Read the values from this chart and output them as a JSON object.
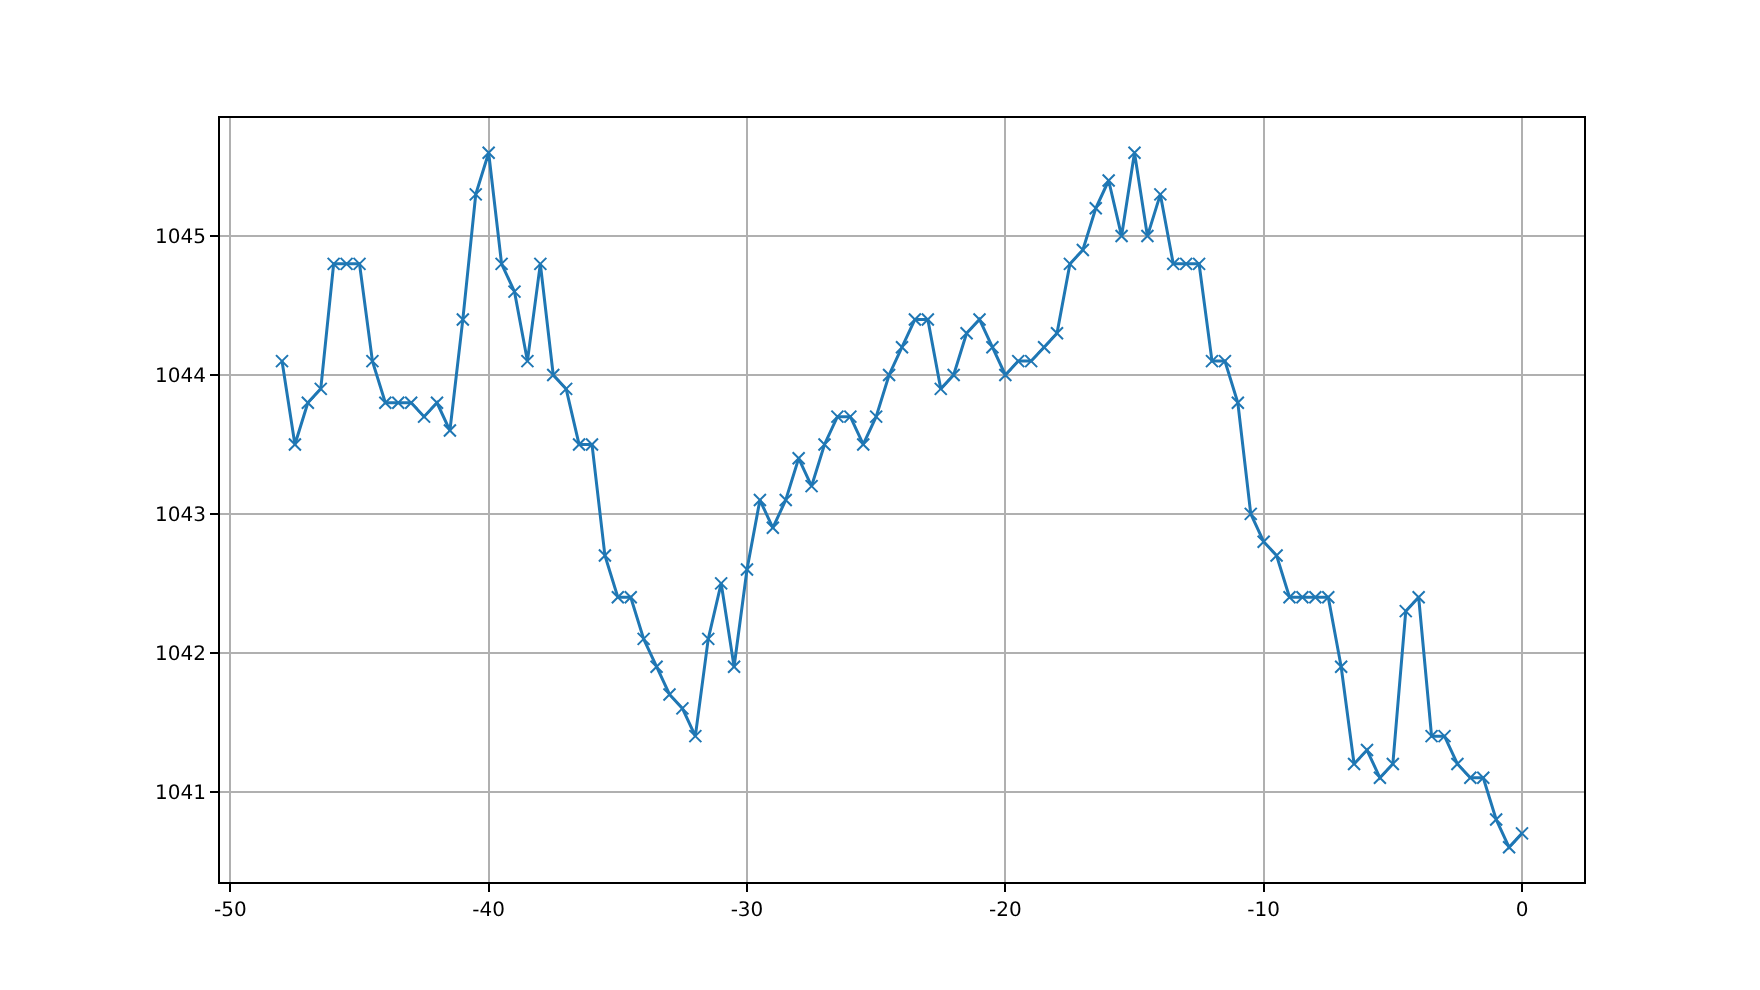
{
  "chart_data": {
    "type": "line",
    "marker": "cross",
    "grid": true,
    "x": [
      -48,
      -47.5,
      -47,
      -46.5,
      -46,
      -45.5,
      -45,
      -44.5,
      -44,
      -43.5,
      -43,
      -42.5,
      -42,
      -41.5,
      -41,
      -40.5,
      -40,
      -39.5,
      -39,
      -38.5,
      -38,
      -37.5,
      -37,
      -36.5,
      -36,
      -35.5,
      -35,
      -34.5,
      -34,
      -33.5,
      -33,
      -32.5,
      -32,
      -31.5,
      -31,
      -30.5,
      -30,
      -29.5,
      -29,
      -28.5,
      -28,
      -27.5,
      -27,
      -26.5,
      -26,
      -25.5,
      -25,
      -24.5,
      -24,
      -23.5,
      -23,
      -22.5,
      -22,
      -21.5,
      -21,
      -20.5,
      -20,
      -19.5,
      -19,
      -18.5,
      -18,
      -17.5,
      -17,
      -16.5,
      -16,
      -15.5,
      -15,
      -14.5,
      -14,
      -13.5,
      -13,
      -12.5,
      -12,
      -11.5,
      -11,
      -10.5,
      -10,
      -9.5,
      -9,
      -8.5,
      -8,
      -7.5,
      -7,
      -6.5,
      -6,
      -5.5,
      -5,
      -4.5,
      -4,
      -3.5,
      -3,
      -2.5,
      -2,
      -1.5,
      -1,
      -0.5,
      0
    ],
    "series": [
      {
        "color": "#1f77b4",
        "values": [
          1044.1,
          1043.5,
          1043.8,
          1043.9,
          1044.8,
          1044.8,
          1044.8,
          1044.1,
          1043.8,
          1043.8,
          1043.8,
          1043.7,
          1043.8,
          1043.6,
          1044.4,
          1045.3,
          1045.6,
          1044.8,
          1044.6,
          1044.1,
          1044.8,
          1044.0,
          1043.9,
          1043.5,
          1043.5,
          1042.7,
          1042.4,
          1042.4,
          1042.1,
          1041.9,
          1041.7,
          1041.6,
          1041.4,
          1042.1,
          1042.5,
          1041.9,
          1042.6,
          1043.1,
          1042.9,
          1043.1,
          1043.4,
          1043.2,
          1043.5,
          1043.7,
          1043.7,
          1043.5,
          1043.7,
          1044.0,
          1044.2,
          1044.4,
          1044.4,
          1043.9,
          1044.0,
          1044.3,
          1044.4,
          1044.2,
          1044.0,
          1044.1,
          1044.1,
          1044.2,
          1044.3,
          1044.8,
          1044.9,
          1045.2,
          1045.4,
          1045.0,
          1045.6,
          1045.0,
          1045.3,
          1044.8,
          1044.8,
          1044.8,
          1044.1,
          1044.1,
          1043.8,
          1043.0,
          1042.8,
          1042.7,
          1042.4,
          1042.4,
          1042.4,
          1042.4,
          1041.9,
          1041.2,
          1041.3,
          1041.1,
          1041.2,
          1042.3,
          1042.4,
          1041.4,
          1041.4,
          1041.2,
          1041.1,
          1041.1,
          1040.8,
          1040.6,
          1040.7
        ]
      }
    ],
    "xlim": [
      -50.4,
      2.4
    ],
    "xticks": [
      -50,
      -40,
      -30,
      -20,
      -10,
      0
    ],
    "ylim": [
      1040.35,
      1045.85
    ],
    "yticks": [
      1041,
      1042,
      1043,
      1044,
      1045
    ]
  }
}
